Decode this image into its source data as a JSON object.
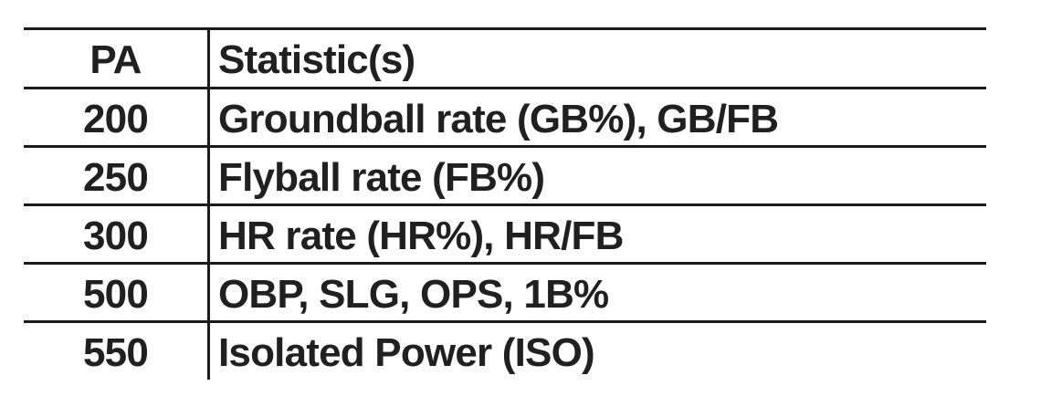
{
  "table": {
    "columns": [
      {
        "key": "pa",
        "label": "PA"
      },
      {
        "key": "stats",
        "label": "Statistic(s)"
      }
    ],
    "rows": [
      {
        "pa": "200",
        "stats": "Groundball rate (GB%), GB/FB"
      },
      {
        "pa": "250",
        "stats": "Flyball rate (FB%)"
      },
      {
        "pa": "300",
        "stats": "HR rate (HR%), HR/FB"
      },
      {
        "pa": "500",
        "stats": "OBP, SLG, OPS, 1B%"
      },
      {
        "pa": "550",
        "stats": "Isolated Power (ISO)"
      }
    ]
  },
  "colors": {
    "text": "#202020",
    "rule": "#1b1b1b",
    "background": "#ffffff"
  }
}
